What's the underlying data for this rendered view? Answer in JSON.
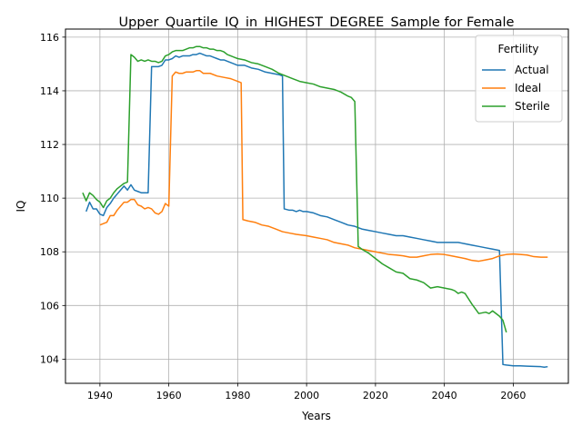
{
  "chart_data": {
    "type": "line",
    "title": "Upper_Quartile_IQ_in_HIGHEST_DEGREE_Sample for Female",
    "xlabel": "Years",
    "ylabel": "IQ",
    "xlim": [
      1930,
      2076
    ],
    "ylim": [
      103.1,
      116.3
    ],
    "xticks": [
      1940,
      1960,
      1980,
      2000,
      2020,
      2040,
      2060
    ],
    "yticks": [
      104,
      106,
      108,
      110,
      112,
      114,
      116
    ],
    "grid": true,
    "legend": {
      "title": "Fertility",
      "placement": "top-right"
    },
    "series": [
      {
        "name": "Actual",
        "color": "#1f77b4",
        "points": [
          [
            1936,
            109.5
          ],
          [
            1937,
            109.85
          ],
          [
            1938,
            109.6
          ],
          [
            1939,
            109.6
          ],
          [
            1940,
            109.4
          ],
          [
            1941,
            109.35
          ],
          [
            1942,
            109.65
          ],
          [
            1943,
            109.8
          ],
          [
            1944,
            110.0
          ],
          [
            1945,
            110.15
          ],
          [
            1946,
            110.3
          ],
          [
            1947,
            110.45
          ],
          [
            1948,
            110.3
          ],
          [
            1949,
            110.5
          ],
          [
            1950,
            110.3
          ],
          [
            1951,
            110.25
          ],
          [
            1952,
            110.2
          ],
          [
            1953,
            110.2
          ],
          [
            1954,
            110.2
          ],
          [
            1955,
            114.9
          ],
          [
            1956,
            114.9
          ],
          [
            1957,
            114.9
          ],
          [
            1958,
            114.95
          ],
          [
            1959,
            115.15
          ],
          [
            1960,
            115.15
          ],
          [
            1961,
            115.2
          ],
          [
            1962,
            115.3
          ],
          [
            1963,
            115.25
          ],
          [
            1964,
            115.3
          ],
          [
            1965,
            115.3
          ],
          [
            1966,
            115.3
          ],
          [
            1967,
            115.35
          ],
          [
            1968,
            115.35
          ],
          [
            1969,
            115.4
          ],
          [
            1970,
            115.35
          ],
          [
            1971,
            115.3
          ],
          [
            1972,
            115.3
          ],
          [
            1973,
            115.25
          ],
          [
            1974,
            115.2
          ],
          [
            1975,
            115.15
          ],
          [
            1976,
            115.15
          ],
          [
            1977,
            115.1
          ],
          [
            1978,
            115.05
          ],
          [
            1979,
            115.0
          ],
          [
            1980,
            114.95
          ],
          [
            1982,
            114.95
          ],
          [
            1984,
            114.85
          ],
          [
            1986,
            114.8
          ],
          [
            1988,
            114.7
          ],
          [
            1990,
            114.65
          ],
          [
            1992,
            114.6
          ],
          [
            1993,
            114.55
          ],
          [
            1993.5,
            109.6
          ],
          [
            1995,
            109.55
          ],
          [
            1996,
            109.55
          ],
          [
            1997,
            109.5
          ],
          [
            1998,
            109.55
          ],
          [
            1999,
            109.5
          ],
          [
            2000,
            109.5
          ],
          [
            2002,
            109.45
          ],
          [
            2004,
            109.35
          ],
          [
            2006,
            109.3
          ],
          [
            2008,
            109.2
          ],
          [
            2010,
            109.1
          ],
          [
            2012,
            109.0
          ],
          [
            2014,
            108.95
          ],
          [
            2016,
            108.85
          ],
          [
            2018,
            108.8
          ],
          [
            2020,
            108.75
          ],
          [
            2022,
            108.7
          ],
          [
            2024,
            108.65
          ],
          [
            2026,
            108.6
          ],
          [
            2028,
            108.6
          ],
          [
            2030,
            108.55
          ],
          [
            2032,
            108.5
          ],
          [
            2034,
            108.45
          ],
          [
            2036,
            108.4
          ],
          [
            2038,
            108.35
          ],
          [
            2040,
            108.35
          ],
          [
            2042,
            108.35
          ],
          [
            2044,
            108.35
          ],
          [
            2046,
            108.3
          ],
          [
            2048,
            108.25
          ],
          [
            2050,
            108.2
          ],
          [
            2052,
            108.15
          ],
          [
            2054,
            108.1
          ],
          [
            2056,
            108.05
          ],
          [
            2057,
            103.8
          ],
          [
            2058,
            103.78
          ],
          [
            2060,
            103.75
          ],
          [
            2062,
            103.75
          ],
          [
            2064,
            103.74
          ],
          [
            2066,
            103.73
          ],
          [
            2068,
            103.72
          ],
          [
            2069,
            103.7
          ],
          [
            2070,
            103.72
          ]
        ]
      },
      {
        "name": "Ideal",
        "color": "#ff7f0e",
        "points": [
          [
            1940,
            109.0
          ],
          [
            1941,
            109.05
          ],
          [
            1942,
            109.1
          ],
          [
            1943,
            109.35
          ],
          [
            1944,
            109.35
          ],
          [
            1945,
            109.55
          ],
          [
            1946,
            109.7
          ],
          [
            1947,
            109.85
          ],
          [
            1948,
            109.85
          ],
          [
            1949,
            109.95
          ],
          [
            1950,
            109.95
          ],
          [
            1951,
            109.75
          ],
          [
            1952,
            109.7
          ],
          [
            1953,
            109.6
          ],
          [
            1954,
            109.65
          ],
          [
            1955,
            109.6
          ],
          [
            1956,
            109.45
          ],
          [
            1957,
            109.4
          ],
          [
            1958,
            109.5
          ],
          [
            1959,
            109.8
          ],
          [
            1960,
            109.7
          ],
          [
            1961,
            114.55
          ],
          [
            1962,
            114.7
          ],
          [
            1963,
            114.65
          ],
          [
            1964,
            114.65
          ],
          [
            1965,
            114.7
          ],
          [
            1966,
            114.7
          ],
          [
            1967,
            114.7
          ],
          [
            1968,
            114.75
          ],
          [
            1969,
            114.75
          ],
          [
            1970,
            114.65
          ],
          [
            1972,
            114.65
          ],
          [
            1974,
            114.55
          ],
          [
            1976,
            114.5
          ],
          [
            1978,
            114.45
          ],
          [
            1980,
            114.35
          ],
          [
            1981,
            114.3
          ],
          [
            1981.5,
            109.2
          ],
          [
            1983,
            109.15
          ],
          [
            1985,
            109.1
          ],
          [
            1987,
            109.0
          ],
          [
            1989,
            108.95
          ],
          [
            1991,
            108.85
          ],
          [
            1993,
            108.75
          ],
          [
            1995,
            108.7
          ],
          [
            1997,
            108.65
          ],
          [
            2000,
            108.6
          ],
          [
            2002,
            108.55
          ],
          [
            2004,
            108.5
          ],
          [
            2006,
            108.45
          ],
          [
            2008,
            108.35
          ],
          [
            2010,
            108.3
          ],
          [
            2012,
            108.25
          ],
          [
            2014,
            108.15
          ],
          [
            2016,
            108.1
          ],
          [
            2018,
            108.05
          ],
          [
            2020,
            108.0
          ],
          [
            2022,
            107.95
          ],
          [
            2024,
            107.9
          ],
          [
            2026,
            107.88
          ],
          [
            2028,
            107.85
          ],
          [
            2030,
            107.8
          ],
          [
            2032,
            107.8
          ],
          [
            2034,
            107.85
          ],
          [
            2036,
            107.9
          ],
          [
            2038,
            107.92
          ],
          [
            2040,
            107.9
          ],
          [
            2042,
            107.85
          ],
          [
            2044,
            107.8
          ],
          [
            2046,
            107.75
          ],
          [
            2048,
            107.68
          ],
          [
            2050,
            107.65
          ],
          [
            2052,
            107.7
          ],
          [
            2054,
            107.75
          ],
          [
            2056,
            107.85
          ],
          [
            2058,
            107.9
          ],
          [
            2060,
            107.92
          ],
          [
            2062,
            107.9
          ],
          [
            2064,
            107.88
          ],
          [
            2066,
            107.82
          ],
          [
            2068,
            107.8
          ],
          [
            2070,
            107.8
          ]
        ]
      },
      {
        "name": "Sterile",
        "color": "#2ca02c",
        "points": [
          [
            1935,
            110.2
          ],
          [
            1936,
            109.9
          ],
          [
            1937,
            110.2
          ],
          [
            1938,
            110.1
          ],
          [
            1939,
            109.95
          ],
          [
            1940,
            109.85
          ],
          [
            1941,
            109.65
          ],
          [
            1942,
            109.9
          ],
          [
            1943,
            110.0
          ],
          [
            1944,
            110.2
          ],
          [
            1945,
            110.35
          ],
          [
            1946,
            110.45
          ],
          [
            1947,
            110.55
          ],
          [
            1948,
            110.6
          ],
          [
            1949,
            115.35
          ],
          [
            1950,
            115.25
          ],
          [
            1951,
            115.1
          ],
          [
            1952,
            115.15
          ],
          [
            1953,
            115.1
          ],
          [
            1954,
            115.15
          ],
          [
            1955,
            115.1
          ],
          [
            1956,
            115.1
          ],
          [
            1957,
            115.05
          ],
          [
            1958,
            115.1
          ],
          [
            1959,
            115.3
          ],
          [
            1960,
            115.35
          ],
          [
            1961,
            115.45
          ],
          [
            1962,
            115.5
          ],
          [
            1963,
            115.5
          ],
          [
            1964,
            115.5
          ],
          [
            1965,
            115.55
          ],
          [
            1966,
            115.6
          ],
          [
            1967,
            115.6
          ],
          [
            1968,
            115.65
          ],
          [
            1969,
            115.65
          ],
          [
            1970,
            115.6
          ],
          [
            1971,
            115.6
          ],
          [
            1972,
            115.55
          ],
          [
            1973,
            115.55
          ],
          [
            1974,
            115.5
          ],
          [
            1975,
            115.5
          ],
          [
            1976,
            115.45
          ],
          [
            1977,
            115.35
          ],
          [
            1978,
            115.3
          ],
          [
            1979,
            115.25
          ],
          [
            1980,
            115.2
          ],
          [
            1982,
            115.15
          ],
          [
            1984,
            115.05
          ],
          [
            1986,
            115.0
          ],
          [
            1988,
            114.9
          ],
          [
            1990,
            114.8
          ],
          [
            1992,
            114.65
          ],
          [
            1994,
            114.55
          ],
          [
            1996,
            114.45
          ],
          [
            1998,
            114.35
          ],
          [
            2000,
            114.3
          ],
          [
            2002,
            114.25
          ],
          [
            2004,
            114.15
          ],
          [
            2006,
            114.1
          ],
          [
            2008,
            114.05
          ],
          [
            2010,
            113.95
          ],
          [
            2012,
            113.8
          ],
          [
            2013,
            113.75
          ],
          [
            2014,
            113.6
          ],
          [
            2015,
            108.2
          ],
          [
            2016,
            108.1
          ],
          [
            2018,
            107.95
          ],
          [
            2020,
            107.75
          ],
          [
            2022,
            107.55
          ],
          [
            2024,
            107.4
          ],
          [
            2026,
            107.25
          ],
          [
            2028,
            107.2
          ],
          [
            2030,
            107.0
          ],
          [
            2032,
            106.95
          ],
          [
            2034,
            106.85
          ],
          [
            2036,
            106.65
          ],
          [
            2038,
            106.7
          ],
          [
            2040,
            106.65
          ],
          [
            2042,
            106.6
          ],
          [
            2043,
            106.55
          ],
          [
            2044,
            106.45
          ],
          [
            2045,
            106.5
          ],
          [
            2046,
            106.45
          ],
          [
            2048,
            106.05
          ],
          [
            2050,
            105.7
          ],
          [
            2052,
            105.75
          ],
          [
            2053,
            105.7
          ],
          [
            2054,
            105.8
          ],
          [
            2056,
            105.6
          ],
          [
            2057,
            105.45
          ],
          [
            2058,
            105.0
          ]
        ]
      }
    ]
  }
}
